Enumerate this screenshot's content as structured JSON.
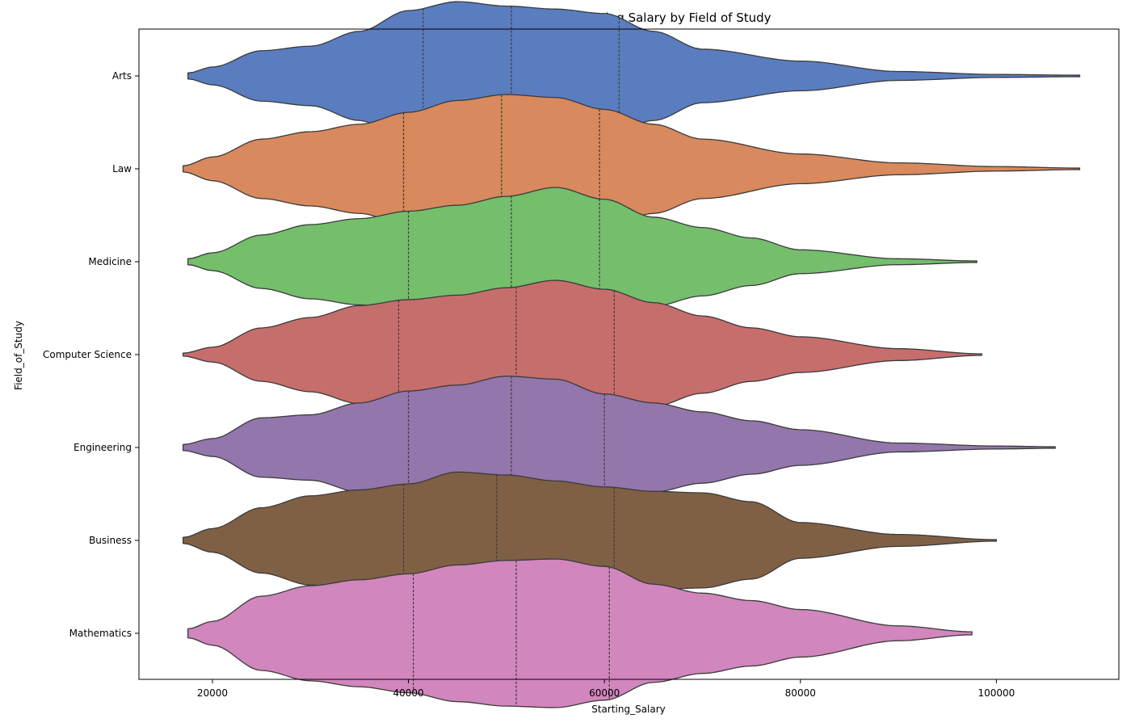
{
  "chart_data": {
    "type": "violin",
    "orientation": "horizontal",
    "title": "Distribution of Starting Salary by Field of Study",
    "xlabel": "Starting_Salary",
    "ylabel": "Field_of_Study",
    "xlim": [
      12500,
      112500
    ],
    "x_ticks": [
      20000,
      40000,
      60000,
      80000,
      100000
    ],
    "inner": "quartile",
    "grid": false,
    "categories": [
      "Arts",
      "Law",
      "Medicine",
      "Computer Science",
      "Engineering",
      "Business",
      "Mathematics"
    ],
    "series": [
      {
        "category": "Arts",
        "color": "#5a7dc0",
        "min": 17500,
        "max": 108500,
        "quartiles": [
          41500,
          50500,
          61500
        ],
        "density": [
          [
            17500,
            0.02
          ],
          [
            20000,
            0.06
          ],
          [
            25000,
            0.17
          ],
          [
            30000,
            0.2
          ],
          [
            35000,
            0.3
          ],
          [
            40000,
            0.44
          ],
          [
            45000,
            0.5
          ],
          [
            50000,
            0.47
          ],
          [
            55000,
            0.45
          ],
          [
            60000,
            0.42
          ],
          [
            65000,
            0.3
          ],
          [
            70000,
            0.18
          ],
          [
            80000,
            0.1
          ],
          [
            90000,
            0.03
          ],
          [
            100000,
            0.01
          ],
          [
            108500,
            0.005
          ]
        ]
      },
      {
        "category": "Law",
        "color": "#d8895d",
        "min": 17000,
        "max": 108500,
        "quartiles": [
          39500,
          49500,
          59500
        ],
        "density": [
          [
            17000,
            0.02
          ],
          [
            20000,
            0.08
          ],
          [
            25000,
            0.2
          ],
          [
            30000,
            0.25
          ],
          [
            35000,
            0.3
          ],
          [
            40000,
            0.38
          ],
          [
            45000,
            0.46
          ],
          [
            50000,
            0.5
          ],
          [
            55000,
            0.48
          ],
          [
            60000,
            0.4
          ],
          [
            65000,
            0.3
          ],
          [
            70000,
            0.2
          ],
          [
            80000,
            0.1
          ],
          [
            90000,
            0.04
          ],
          [
            100000,
            0.015
          ],
          [
            108500,
            0.005
          ]
        ]
      },
      {
        "category": "Medicine",
        "color": "#74be6c",
        "min": 17500,
        "max": 98000,
        "quartiles": [
          40000,
          50500,
          59500
        ],
        "density": [
          [
            17500,
            0.02
          ],
          [
            20000,
            0.06
          ],
          [
            25000,
            0.18
          ],
          [
            30000,
            0.25
          ],
          [
            35000,
            0.29
          ],
          [
            40000,
            0.34
          ],
          [
            45000,
            0.38
          ],
          [
            50000,
            0.44
          ],
          [
            55000,
            0.5
          ],
          [
            60000,
            0.42
          ],
          [
            65000,
            0.3
          ],
          [
            70000,
            0.23
          ],
          [
            75000,
            0.16
          ],
          [
            80000,
            0.08
          ],
          [
            90000,
            0.02
          ],
          [
            98000,
            0.005
          ]
        ]
      },
      {
        "category": "Computer Science",
        "color": "#c66e6c",
        "min": 17000,
        "max": 98500,
        "quartiles": [
          39000,
          51000,
          61000
        ],
        "density": [
          [
            17000,
            0.01
          ],
          [
            20000,
            0.05
          ],
          [
            25000,
            0.18
          ],
          [
            30000,
            0.25
          ],
          [
            35000,
            0.33
          ],
          [
            40000,
            0.37
          ],
          [
            45000,
            0.4
          ],
          [
            50000,
            0.45
          ],
          [
            55000,
            0.5
          ],
          [
            60000,
            0.44
          ],
          [
            65000,
            0.35
          ],
          [
            70000,
            0.26
          ],
          [
            75000,
            0.18
          ],
          [
            80000,
            0.12
          ],
          [
            90000,
            0.04
          ],
          [
            98500,
            0.005
          ]
        ]
      },
      {
        "category": "Engineering",
        "color": "#9376ac",
        "min": 17000,
        "max": 106000,
        "quartiles": [
          40000,
          50500,
          60000
        ],
        "density": [
          [
            17000,
            0.02
          ],
          [
            20000,
            0.06
          ],
          [
            25000,
            0.2
          ],
          [
            30000,
            0.22
          ],
          [
            35000,
            0.3
          ],
          [
            40000,
            0.38
          ],
          [
            45000,
            0.42
          ],
          [
            50000,
            0.48
          ],
          [
            55000,
            0.46
          ],
          [
            60000,
            0.36
          ],
          [
            65000,
            0.3
          ],
          [
            70000,
            0.24
          ],
          [
            75000,
            0.18
          ],
          [
            80000,
            0.12
          ],
          [
            90000,
            0.03
          ],
          [
            100000,
            0.01
          ],
          [
            106000,
            0.005
          ]
        ]
      },
      {
        "category": "Business",
        "color": "#806045",
        "min": 17000,
        "max": 100000,
        "quartiles": [
          39500,
          49000,
          61000
        ],
        "density": [
          [
            17000,
            0.02
          ],
          [
            20000,
            0.08
          ],
          [
            25000,
            0.22
          ],
          [
            30000,
            0.3
          ],
          [
            35000,
            0.34
          ],
          [
            40000,
            0.38
          ],
          [
            45000,
            0.46
          ],
          [
            50000,
            0.44
          ],
          [
            55000,
            0.4
          ],
          [
            60000,
            0.36
          ],
          [
            65000,
            0.33
          ],
          [
            70000,
            0.32
          ],
          [
            75000,
            0.26
          ],
          [
            80000,
            0.12
          ],
          [
            90000,
            0.04
          ],
          [
            100000,
            0.005
          ]
        ]
      },
      {
        "category": "Mathematics",
        "color": "#d186bd",
        "min": 17500,
        "max": 97500,
        "quartiles": [
          40500,
          51000,
          60500
        ],
        "density": [
          [
            17500,
            0.03
          ],
          [
            20000,
            0.08
          ],
          [
            25000,
            0.25
          ],
          [
            30000,
            0.32
          ],
          [
            35000,
            0.36
          ],
          [
            40000,
            0.4
          ],
          [
            45000,
            0.46
          ],
          [
            50000,
            0.49
          ],
          [
            55000,
            0.5
          ],
          [
            60000,
            0.45
          ],
          [
            65000,
            0.33
          ],
          [
            70000,
            0.27
          ],
          [
            75000,
            0.22
          ],
          [
            80000,
            0.16
          ],
          [
            90000,
            0.05
          ],
          [
            97500,
            0.01
          ]
        ]
      }
    ]
  }
}
